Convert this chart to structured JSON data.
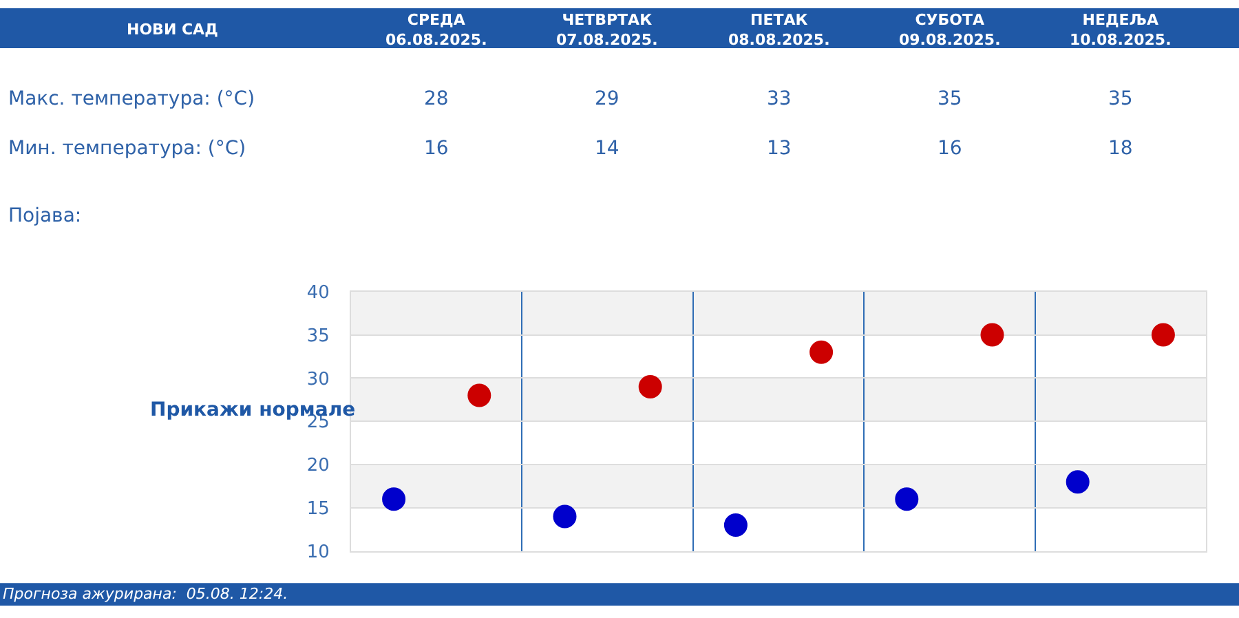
{
  "chart_data": [
    {
      "type": "other",
      "title": "НОВИ САД",
      "categories": [
        "СРЕДА\n06.08.2025.",
        "ЧЕТВРТАК\n07.08.2025.",
        "ПЕТАК\n08.08.2025.",
        "СУБОТА\n09.08.2025.",
        "НЕДЕЉА\n10.08.2025."
      ],
      "series": [
        {
          "name": "Макс. температура: (°C)",
          "values": [
            28,
            29,
            33,
            35,
            35
          ]
        },
        {
          "name": "Мин. температура: (°C)",
          "values": [
            16,
            14,
            13,
            16,
            18
          ]
        }
      ],
      "data_labels": true,
      "annotations": [
        "Појава:"
      ]
    },
    {
      "type": "scatter",
      "categories": [
        null,
        null,
        null,
        null,
        null
      ],
      "series": [
        {
          "color": "#0000cc",
          "values": [
            16,
            14,
            13,
            16,
            18
          ]
        },
        {
          "color": "#cc0000",
          "values": [
            28,
            29,
            33,
            35,
            35
          ]
        }
      ],
      "ylim": [
        10,
        40
      ],
      "yticks": [
        10,
        15,
        20,
        25,
        30,
        35,
        40
      ],
      "grid": true,
      "marker": "circle",
      "bands": [
        {
          "axis": "y",
          "from": 35,
          "to": 40,
          "color": "#f2f2f2"
        },
        {
          "axis": "y",
          "from": 25,
          "to": 30,
          "color": "#f2f2f2"
        },
        {
          "axis": "y",
          "from": 15,
          "to": 20,
          "color": "#f2f2f2"
        }
      ],
      "annotations": [
        "Прикажи нормале",
        "Прогноза ажурирана:  05.08. 12:24."
      ]
    }
  ]
}
